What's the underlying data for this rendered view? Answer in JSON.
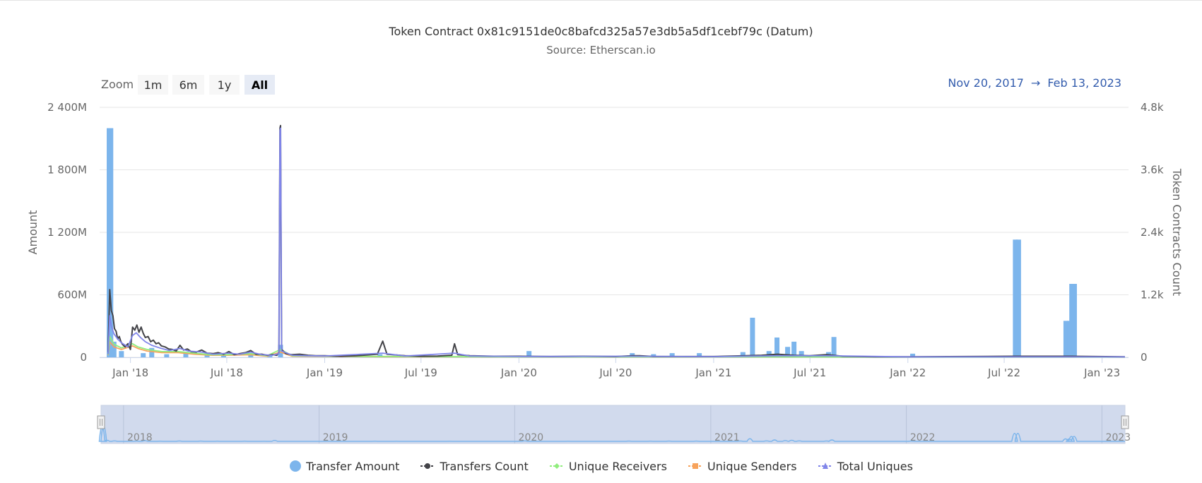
{
  "header": {
    "title": "Token Contract 0x81c9151de0c8bafcd325a57e3db5a5df1cebf79c (Datum)",
    "subtitle": "Source: Etherscan.io"
  },
  "range_selector": {
    "zoom_label": "Zoom",
    "buttons": [
      "1m",
      "6m",
      "1y",
      "All"
    ],
    "selected": "All",
    "from": "Nov 20, 2017",
    "arrow": "→",
    "to": "Feb 13, 2023"
  },
  "colors": {
    "transfer_amount": "#7cb5ec",
    "transfers_count": "#434348",
    "unique_receivers": "#90ed7d",
    "unique_senders": "#f7a35c",
    "total_uniques": "#8085e9",
    "navigator_mask": "#ccd6eb",
    "range_text": "#335cad"
  },
  "chart_data": {
    "type": "bar",
    "title": "Token Contract 0x81c9151de0c8bafcd325a57e3db5a5df1cebf79c (Datum)",
    "subtitle": "Source: Etherscan.io",
    "x_range": [
      "2017-11-20",
      "2023-02-13"
    ],
    "x_ticks": [
      "Jan '18",
      "Jul '18",
      "Jan '19",
      "Jul '19",
      "Jan '20",
      "Jul '20",
      "Jan '21",
      "Jul '21",
      "Jan '22",
      "Jul '22",
      "Jan '23"
    ],
    "y_left": {
      "label": "Amount",
      "min": 0,
      "max": 2400,
      "unit": "M",
      "ticks": [
        "0",
        "600M",
        "1 200M",
        "1 800M",
        "2 400M"
      ]
    },
    "y_right": {
      "label": "Token Contracts Count",
      "min": 0,
      "max": 4800,
      "ticks": [
        "0",
        "1.2k",
        "2.4k",
        "3.6k",
        "4.8k"
      ]
    },
    "navigator_years": [
      "2018",
      "2019",
      "2020",
      "2021",
      "2022",
      "2023"
    ],
    "legend": [
      "Transfer Amount",
      "Transfers Count",
      "Unique Receivers",
      "Unique Senders",
      "Total Uniques"
    ],
    "grid": true,
    "legend_position": "bottom",
    "series": [
      {
        "name": "Transfer Amount",
        "type": "bar",
        "axis": "left",
        "unit": "M",
        "points": [
          [
            "2017-11-22",
            2200
          ],
          [
            "2017-11-25",
            2200
          ],
          [
            "2017-12-01",
            150
          ],
          [
            "2017-12-15",
            60
          ],
          [
            "2018-01-25",
            40
          ],
          [
            "2018-02-10",
            90
          ],
          [
            "2018-03-10",
            30
          ],
          [
            "2018-04-15",
            50
          ],
          [
            "2018-05-25",
            40
          ],
          [
            "2018-06-25",
            20
          ],
          [
            "2018-08-15",
            30
          ],
          [
            "2018-09-20",
            15
          ],
          [
            "2018-10-10",
            120
          ],
          [
            "2019-01-20",
            10
          ],
          [
            "2019-04-15",
            30
          ],
          [
            "2019-05-25",
            15
          ],
          [
            "2019-09-01",
            10
          ],
          [
            "2020-01-20",
            60
          ],
          [
            "2020-04-10",
            15
          ],
          [
            "2020-08-01",
            40
          ],
          [
            "2020-09-10",
            30
          ],
          [
            "2020-10-15",
            40
          ],
          [
            "2020-12-05",
            40
          ],
          [
            "2021-02-25",
            50
          ],
          [
            "2021-03-15",
            380
          ],
          [
            "2021-04-15",
            60
          ],
          [
            "2021-04-30",
            190
          ],
          [
            "2021-05-20",
            100
          ],
          [
            "2021-06-01",
            150
          ],
          [
            "2021-06-15",
            60
          ],
          [
            "2021-08-05",
            50
          ],
          [
            "2021-08-15",
            195
          ],
          [
            "2022-01-10",
            35
          ],
          [
            "2022-07-22",
            1130
          ],
          [
            "2022-07-28",
            1130
          ],
          [
            "2022-10-25",
            350
          ],
          [
            "2022-11-01",
            350
          ],
          [
            "2022-11-05",
            705
          ],
          [
            "2022-11-10",
            705
          ]
        ]
      },
      {
        "name": "Transfers Count",
        "type": "line",
        "axis": "right",
        "points": [
          [
            "2017-11-20",
            100
          ],
          [
            "2017-11-23",
            1300
          ],
          [
            "2017-11-26",
            900
          ],
          [
            "2017-11-29",
            800
          ],
          [
            "2017-12-02",
            550
          ],
          [
            "2017-12-05",
            500
          ],
          [
            "2017-12-08",
            350
          ],
          [
            "2017-12-11",
            400
          ],
          [
            "2017-12-14",
            300
          ],
          [
            "2017-12-17",
            250
          ],
          [
            "2017-12-22",
            200
          ],
          [
            "2017-12-27",
            260
          ],
          [
            "2018-01-01",
            150
          ],
          [
            "2018-01-05",
            580
          ],
          [
            "2018-01-09",
            520
          ],
          [
            "2018-01-13",
            620
          ],
          [
            "2018-01-17",
            480
          ],
          [
            "2018-01-21",
            580
          ],
          [
            "2018-01-25",
            460
          ],
          [
            "2018-01-29",
            380
          ],
          [
            "2018-02-03",
            400
          ],
          [
            "2018-02-08",
            300
          ],
          [
            "2018-02-13",
            330
          ],
          [
            "2018-02-18",
            260
          ],
          [
            "2018-02-23",
            280
          ],
          [
            "2018-02-28",
            220
          ],
          [
            "2018-03-07",
            200
          ],
          [
            "2018-03-14",
            160
          ],
          [
            "2018-03-21",
            150
          ],
          [
            "2018-03-28",
            120
          ],
          [
            "2018-04-04",
            230
          ],
          [
            "2018-04-11",
            140
          ],
          [
            "2018-04-18",
            160
          ],
          [
            "2018-04-25",
            110
          ],
          [
            "2018-05-05",
            100
          ],
          [
            "2018-05-15",
            140
          ],
          [
            "2018-05-25",
            80
          ],
          [
            "2018-06-05",
            70
          ],
          [
            "2018-06-15",
            90
          ],
          [
            "2018-06-25",
            60
          ],
          [
            "2018-07-05",
            110
          ],
          [
            "2018-07-15",
            50
          ],
          [
            "2018-07-25",
            70
          ],
          [
            "2018-08-05",
            90
          ],
          [
            "2018-08-15",
            130
          ],
          [
            "2018-08-25",
            60
          ],
          [
            "2018-09-05",
            60
          ],
          [
            "2018-09-15",
            40
          ],
          [
            "2018-09-25",
            50
          ],
          [
            "2018-10-03",
            40
          ],
          [
            "2018-10-07",
            90
          ],
          [
            "2018-10-09",
            4400
          ],
          [
            "2018-10-10",
            4450
          ],
          [
            "2018-10-12",
            150
          ],
          [
            "2018-10-20",
            70
          ],
          [
            "2018-11-01",
            50
          ],
          [
            "2018-11-15",
            60
          ],
          [
            "2018-12-01",
            40
          ],
          [
            "2018-12-15",
            30
          ],
          [
            "2019-01-01",
            30
          ],
          [
            "2019-02-01",
            20
          ],
          [
            "2019-03-01",
            30
          ],
          [
            "2019-04-10",
            60
          ],
          [
            "2019-04-20",
            310
          ],
          [
            "2019-04-28",
            60
          ],
          [
            "2019-06-01",
            30
          ],
          [
            "2019-07-01",
            20
          ],
          [
            "2019-08-01",
            25
          ],
          [
            "2019-08-28",
            40
          ],
          [
            "2019-09-02",
            260
          ],
          [
            "2019-09-08",
            50
          ],
          [
            "2019-10-01",
            30
          ],
          [
            "2019-11-15",
            20
          ],
          [
            "2020-01-01",
            20
          ],
          [
            "2020-03-01",
            15
          ],
          [
            "2020-05-01",
            20
          ],
          [
            "2020-07-01",
            15
          ],
          [
            "2020-08-01",
            30
          ],
          [
            "2020-08-15",
            30
          ],
          [
            "2020-09-10",
            15
          ],
          [
            "2020-11-01",
            15
          ],
          [
            "2021-01-01",
            15
          ],
          [
            "2021-03-01",
            30
          ],
          [
            "2021-04-01",
            40
          ],
          [
            "2021-05-01",
            60
          ],
          [
            "2021-06-01",
            40
          ],
          [
            "2021-07-01",
            30
          ],
          [
            "2021-08-01",
            50
          ],
          [
            "2021-09-01",
            20
          ],
          [
            "2021-11-01",
            10
          ],
          [
            "2022-01-01",
            10
          ],
          [
            "2022-07-20",
            20
          ],
          [
            "2022-11-05",
            20
          ],
          [
            "2023-02-13",
            10
          ]
        ]
      },
      {
        "name": "Unique Receivers",
        "type": "line",
        "axis": "right",
        "points": [
          [
            "2017-11-20",
            50
          ],
          [
            "2017-11-23",
            400
          ],
          [
            "2017-12-01",
            250
          ],
          [
            "2017-12-15",
            180
          ],
          [
            "2018-01-05",
            260
          ],
          [
            "2018-01-15",
            200
          ],
          [
            "2018-02-01",
            150
          ],
          [
            "2018-03-01",
            110
          ],
          [
            "2018-04-01",
            110
          ],
          [
            "2018-05-01",
            80
          ],
          [
            "2018-06-01",
            50
          ],
          [
            "2018-07-01",
            50
          ],
          [
            "2018-08-15",
            70
          ],
          [
            "2018-09-15",
            30
          ],
          [
            "2018-10-10",
            150
          ],
          [
            "2018-11-01",
            30
          ],
          [
            "2019-01-01",
            20
          ],
          [
            "2019-06-01",
            15
          ],
          [
            "2020-01-01",
            10
          ],
          [
            "2021-01-01",
            10
          ],
          [
            "2022-01-01",
            5
          ],
          [
            "2023-02-13",
            5
          ]
        ]
      },
      {
        "name": "Unique Senders",
        "type": "line",
        "axis": "right",
        "points": [
          [
            "2017-11-20",
            40
          ],
          [
            "2017-11-23",
            300
          ],
          [
            "2017-12-01",
            200
          ],
          [
            "2017-12-15",
            150
          ],
          [
            "2018-01-05",
            220
          ],
          [
            "2018-01-15",
            170
          ],
          [
            "2018-02-01",
            120
          ],
          [
            "2018-03-01",
            90
          ],
          [
            "2018-04-01",
            90
          ],
          [
            "2018-05-01",
            60
          ],
          [
            "2018-06-01",
            40
          ],
          [
            "2018-07-01",
            40
          ],
          [
            "2018-08-15",
            50
          ],
          [
            "2018-09-15",
            20
          ],
          [
            "2018-10-10",
            100
          ],
          [
            "2018-11-01",
            20
          ],
          [
            "2019-01-01",
            15
          ],
          [
            "2019-06-01",
            10
          ],
          [
            "2020-01-01",
            8
          ],
          [
            "2021-01-01",
            8
          ],
          [
            "2022-01-01",
            5
          ],
          [
            "2023-02-13",
            5
          ]
        ]
      },
      {
        "name": "Total Uniques",
        "type": "line",
        "axis": "right",
        "points": [
          [
            "2017-11-20",
            60
          ],
          [
            "2017-11-23",
            800
          ],
          [
            "2017-11-26",
            600
          ],
          [
            "2017-12-01",
            450
          ],
          [
            "2017-12-08",
            350
          ],
          [
            "2017-12-15",
            280
          ],
          [
            "2017-12-27",
            200
          ],
          [
            "2018-01-05",
            420
          ],
          [
            "2018-01-12",
            470
          ],
          [
            "2018-01-20",
            380
          ],
          [
            "2018-01-29",
            300
          ],
          [
            "2018-02-10",
            230
          ],
          [
            "2018-02-25",
            180
          ],
          [
            "2018-03-15",
            130
          ],
          [
            "2018-04-04",
            170
          ],
          [
            "2018-04-20",
            120
          ],
          [
            "2018-05-15",
            100
          ],
          [
            "2018-06-05",
            60
          ],
          [
            "2018-07-05",
            80
          ],
          [
            "2018-07-25",
            60
          ],
          [
            "2018-08-15",
            100
          ],
          [
            "2018-09-05",
            50
          ],
          [
            "2018-09-25",
            40
          ],
          [
            "2018-10-07",
            70
          ],
          [
            "2018-10-09",
            4350
          ],
          [
            "2018-10-10",
            4400
          ],
          [
            "2018-10-12",
            120
          ],
          [
            "2018-11-01",
            40
          ],
          [
            "2018-12-01",
            30
          ],
          [
            "2019-01-01",
            25
          ],
          [
            "2019-04-20",
            80
          ],
          [
            "2019-06-01",
            25
          ],
          [
            "2019-09-02",
            80
          ],
          [
            "2019-10-01",
            25
          ],
          [
            "2020-01-01",
            15
          ],
          [
            "2020-08-01",
            20
          ],
          [
            "2021-01-01",
            12
          ],
          [
            "2021-05-01",
            30
          ],
          [
            "2021-08-01",
            30
          ],
          [
            "2022-01-01",
            8
          ],
          [
            "2023-02-13",
            8
          ]
        ]
      }
    ]
  }
}
